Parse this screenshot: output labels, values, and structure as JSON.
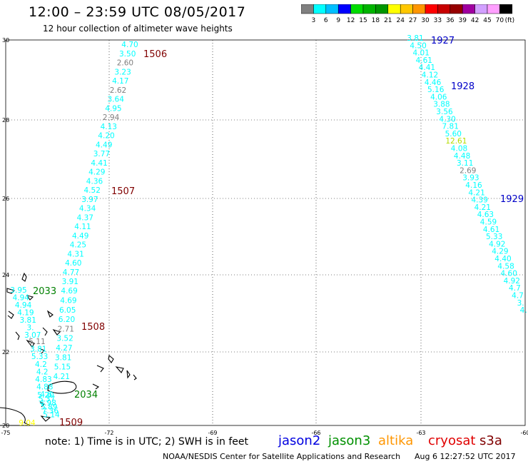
{
  "header": {
    "title": "12:00 – 23:59 UTC 08/05/2017",
    "subtitle": "12 hour collection of altimeter wave heights"
  },
  "colorbar": {
    "unit": "(ft)",
    "ticks": [
      "3",
      "6",
      "9",
      "12",
      "15",
      "18",
      "21",
      "24",
      "27",
      "30",
      "33",
      "36",
      "39",
      "42",
      "45",
      "70"
    ],
    "colors": [
      "#808080",
      "#00ffff",
      "#00bfff",
      "#0000ff",
      "#00ffa0",
      "#00c800",
      "#009600",
      "#ffff00",
      "#ffc800",
      "#ff9600",
      "#ff0000",
      "#c80000",
      "#960000",
      "#a000a0",
      "#d2a0ff",
      "#ff9fff",
      "#000000"
    ]
  },
  "map": {
    "lon_ticks": [
      "-75",
      "-72",
      "-69",
      "-66",
      "-63",
      "-60"
    ],
    "lat_ticks": [
      "20",
      "22",
      "24",
      "26",
      "28",
      "30"
    ],
    "colors": {
      "low": "#00ffff",
      "gray": "#7f7f7f",
      "mid": "#ffff00",
      "green_yellow": "#b4dc00"
    }
  },
  "tracks": [
    {
      "id": "west",
      "readings": [
        {
          "v": "4.70",
          "c": "low"
        },
        {
          "v": "3.50",
          "c": "low"
        },
        {
          "v": "2.60",
          "c": "gray"
        },
        {
          "v": "3.23",
          "c": "low"
        },
        {
          "v": "4.17",
          "c": "low"
        },
        {
          "v": "2.62",
          "c": "gray"
        },
        {
          "v": "3.64",
          "c": "low"
        },
        {
          "v": "4.95",
          "c": "low"
        },
        {
          "v": "2.94",
          "c": "gray"
        },
        {
          "v": "4.13",
          "c": "low"
        },
        {
          "v": "4.20",
          "c": "low"
        },
        {
          "v": "4.49",
          "c": "low"
        },
        {
          "v": "3.77",
          "c": "low"
        },
        {
          "v": "4.41",
          "c": "low"
        },
        {
          "v": "4.29",
          "c": "low"
        },
        {
          "v": "4.36",
          "c": "low"
        },
        {
          "v": "4.52",
          "c": "low"
        },
        {
          "v": "3.97",
          "c": "low"
        },
        {
          "v": "4.34",
          "c": "low"
        },
        {
          "v": "4.37",
          "c": "low"
        },
        {
          "v": "4.11",
          "c": "low"
        },
        {
          "v": "4.49",
          "c": "low"
        },
        {
          "v": "4.25",
          "c": "low"
        },
        {
          "v": "4.31",
          "c": "low"
        },
        {
          "v": "4.60",
          "c": "low"
        },
        {
          "v": "4.77",
          "c": "low"
        },
        {
          "v": "3.91",
          "c": "low"
        },
        {
          "v": "4.69",
          "c": "low"
        },
        {
          "v": "4.69",
          "c": "low"
        },
        {
          "v": "6.05",
          "c": "low"
        },
        {
          "v": "6.20",
          "c": "low"
        },
        {
          "v": "2.71",
          "c": "gray"
        },
        {
          "v": "3.52",
          "c": "low"
        },
        {
          "v": "4.27",
          "c": "low"
        },
        {
          "v": "3.81",
          "c": "low"
        },
        {
          "v": "5.15",
          "c": "low"
        },
        {
          "v": "4.21",
          "c": "low"
        }
      ]
    },
    {
      "id": "east",
      "readings": [
        {
          "v": "3.81",
          "c": "low"
        },
        {
          "v": "4.50",
          "c": "low"
        },
        {
          "v": "4.01",
          "c": "low"
        },
        {
          "v": "4.61",
          "c": "low"
        },
        {
          "v": "4.41",
          "c": "low"
        },
        {
          "v": "4.12",
          "c": "low"
        },
        {
          "v": "4.46",
          "c": "low"
        },
        {
          "v": "5.16",
          "c": "low"
        },
        {
          "v": "4.06",
          "c": "low"
        },
        {
          "v": "3.88",
          "c": "low"
        },
        {
          "v": "3.56",
          "c": "low"
        },
        {
          "v": "4.30",
          "c": "low"
        },
        {
          "v": "7.81",
          "c": "low"
        },
        {
          "v": "5.60",
          "c": "low"
        },
        {
          "v": "12.61",
          "c": "green_yellow"
        },
        {
          "v": "4.08",
          "c": "low"
        },
        {
          "v": "4.48",
          "c": "low"
        },
        {
          "v": "3.11",
          "c": "low"
        },
        {
          "v": "2.69",
          "c": "gray"
        },
        {
          "v": "3.93",
          "c": "low"
        },
        {
          "v": "4.16",
          "c": "low"
        },
        {
          "v": "4.21",
          "c": "low"
        },
        {
          "v": "4.39",
          "c": "low"
        },
        {
          "v": "4.21",
          "c": "low"
        },
        {
          "v": "4.63",
          "c": "low"
        },
        {
          "v": "4.59",
          "c": "low"
        },
        {
          "v": "4.61",
          "c": "low"
        },
        {
          "v": "5.33",
          "c": "low"
        },
        {
          "v": "4.92",
          "c": "low"
        },
        {
          "v": "4.29",
          "c": "low"
        },
        {
          "v": "4.40",
          "c": "low"
        },
        {
          "v": "4.58",
          "c": "low"
        },
        {
          "v": "4.60",
          "c": "low"
        },
        {
          "v": "4.92",
          "c": "low"
        },
        {
          "v": "4.7",
          "c": "low"
        },
        {
          "v": "4.7",
          "c": "low"
        },
        {
          "v": "3.",
          "c": "low"
        },
        {
          "v": "4.",
          "c": "low"
        }
      ]
    },
    {
      "id": "southwest",
      "readings": [
        {
          "v": "3.95",
          "c": "low"
        },
        {
          "v": "4.94",
          "c": "low"
        },
        {
          "v": "4.94",
          "c": "low"
        },
        {
          "v": "4.19",
          "c": "low"
        },
        {
          "v": "3.81",
          "c": "low"
        },
        {
          "v": "3.",
          "c": "low"
        },
        {
          "v": "3.07",
          "c": "low"
        },
        {
          "v": "5.11",
          "c": "gray"
        },
        {
          "v": "3.81",
          "c": "low"
        },
        {
          "v": "5.33",
          "c": "low"
        },
        {
          "v": "4.2",
          "c": "low"
        },
        {
          "v": "4.2",
          "c": "low"
        },
        {
          "v": "4.83",
          "c": "low"
        },
        {
          "v": "4.88",
          "c": "low"
        },
        {
          "v": "4.6",
          "c": "low"
        },
        {
          "v": "5.20",
          "c": "low"
        },
        {
          "v": "5.37",
          "c": "low"
        },
        {
          "v": "4.98",
          "c": "low"
        },
        {
          "v": "5.89",
          "c": "low"
        },
        {
          "v": "7.36",
          "c": "low"
        },
        {
          "v": "5.14",
          "c": "low"
        },
        {
          "v": "9.04",
          "c": "mid"
        }
      ]
    }
  ],
  "time_labels": [
    {
      "text": "1506",
      "color": "#800000"
    },
    {
      "text": "1507",
      "color": "#800000"
    },
    {
      "text": "1508",
      "color": "#800000"
    },
    {
      "text": "1509",
      "color": "#800000"
    },
    {
      "text": "2033",
      "color": "#008000"
    },
    {
      "text": "2034",
      "color": "#008000"
    },
    {
      "text": "1927",
      "color": "#0000c8"
    },
    {
      "text": "1928",
      "color": "#0000c8"
    },
    {
      "text": "1929",
      "color": "#0000c8"
    }
  ],
  "footer": {
    "note": "note: 1) Time is in UTC; 2) SWH is in feet",
    "missions": [
      {
        "name": "jason2",
        "color": "#0000e0"
      },
      {
        "name": "jason3",
        "color": "#009000"
      },
      {
        "name": "altika",
        "color": "#ff9600"
      },
      {
        "name": "cryosat",
        "color": "#e00000"
      },
      {
        "name": "s3a",
        "color": "#800000"
      }
    ],
    "credit": "NOAA/NESDIS Center for Satellite Applications and Research",
    "timestamp": "Aug  6 12:27:52 UTC 2017"
  }
}
